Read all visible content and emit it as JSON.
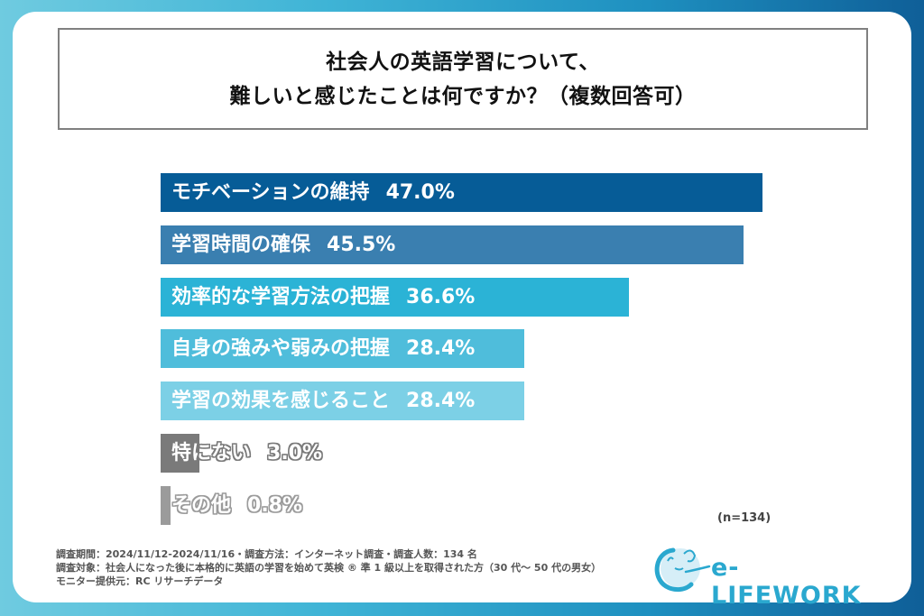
{
  "title": {
    "line1": "社会人の英語学習について、",
    "line2": "難しいと感じたことは何ですか？（複数回答可）"
  },
  "chart_data": {
    "type": "bar",
    "orientation": "horizontal",
    "title": "社会人の英語学習について、難しいと感じたことは何ですか？（複数回答可）",
    "categories": [
      "モチベーションの維持",
      "学習時間の確保",
      "効率的な学習方法の把握",
      "自身の強みや弱みの把握",
      "学習の効果を感じること",
      "特にない",
      "その他"
    ],
    "values": [
      47.0,
      45.5,
      36.6,
      28.4,
      28.4,
      3.0,
      0.8
    ],
    "value_labels": [
      "47.0%",
      "45.5%",
      "36.6%",
      "28.4%",
      "28.4%",
      "3.0%",
      "0.8%"
    ],
    "colors": [
      "#065c97",
      "#3a7fb0",
      "#2bb3d6",
      "#4fbddb",
      "#7cd0e6",
      "#7a7a7a",
      "#9b9b9b"
    ],
    "xlim": [
      0,
      47.0
    ],
    "xlabel": "",
    "ylabel": "",
    "grid": false,
    "legend": "none",
    "sample_size": "(n=134)"
  },
  "footer": {
    "line1": "調査期間：2024/11/12-2024/11/16・調査方法：インターネット調査・調査人数：134 名",
    "line2": "調査対象：社会人になった後に本格的に英語の学習を始めて英検 ® 準 1 級以上を取得された方（30 代～ 50 代の男女）",
    "line3": "モニター提供元：RC リサーチデータ"
  },
  "logo": {
    "text": "e-LIFEWORK",
    "color": "#2aa8cf"
  }
}
